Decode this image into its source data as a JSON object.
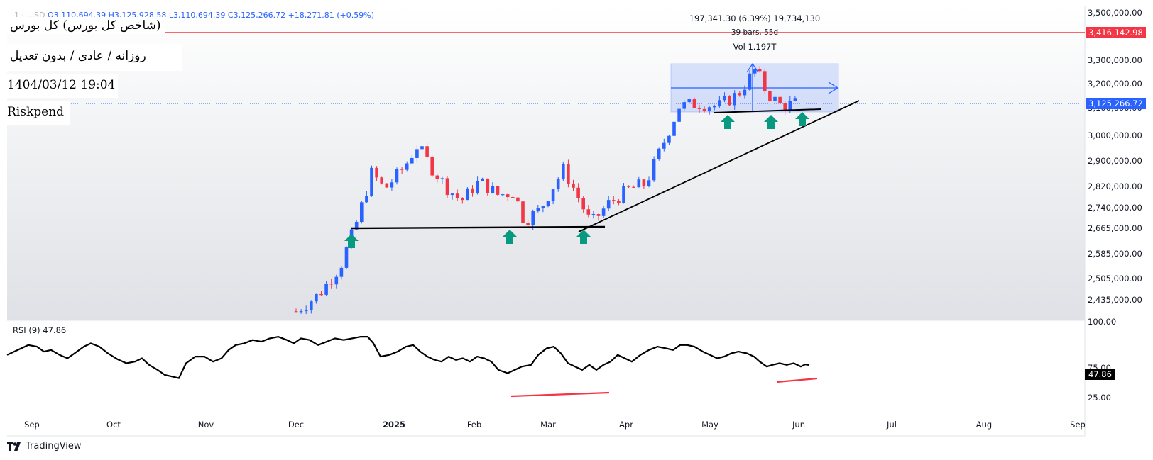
{
  "header": {
    "symbol_badge": "1 · ...SD",
    "ohlc_text": "O3,110,694.39  H3,125,928.58  L3,110,694.39  C3,125,266.72  +18,271.81 (+0.59%)"
  },
  "labels": {
    "title": "(شاخص کل بورس) کل بورس",
    "subtitle": "روزانه / عادی / بدون تعدیل",
    "datetime": "1404/03/12 19:04",
    "author": "Riskpend"
  },
  "measure": {
    "line1": "197,341.30 (6.39%) 19,734,130",
    "line2": "39 bars, 55d",
    "line3": "Vol 1.197T"
  },
  "price_tags": {
    "resistance": "3,416,142.98",
    "current": "3,125,266.72"
  },
  "rsi": {
    "title": "RSI (9)  47.86",
    "value": "47.86"
  },
  "branding": {
    "logo_text": "TradingView"
  },
  "colors": {
    "up": "#2962ff",
    "down": "#f23645",
    "resistance": "#f23645",
    "arrow": "#089981",
    "measure_box": "#2962ff"
  },
  "chart_data": [
    {
      "type": "line",
      "title": "",
      "x_labels": [
        "Sep",
        "Oct",
        "Nov",
        "Dec",
        "2025",
        "Feb",
        "Mar",
        "Apr",
        "May",
        "Jun",
        "Jul",
        "Aug",
        "Sep"
      ],
      "y_ticks": [
        "3,500,000.00",
        "3,300,000.00",
        "3,200,000.00",
        "3,100,000.00",
        "3,000,000.00",
        "2,900,000.00",
        "2,820,000.00",
        "2,740,000.00",
        "2,665,000.00",
        "2,585,000.00",
        "2,505,000.00",
        "2,435,000.00"
      ],
      "y_log_scale": true,
      "resistance_level": 3416142.98,
      "support_level": 2680000,
      "approx_closes": [
        [
          "2024-12-01",
          2400000
        ],
        [
          "2024-12-08",
          2450000
        ],
        [
          "2024-12-15",
          2540000
        ],
        [
          "2024-12-20",
          2680000
        ],
        [
          "2024-12-25",
          2860000
        ],
        [
          "2024-12-29",
          2800000
        ],
        [
          "2025-01-05",
          2880000
        ],
        [
          "2025-01-10",
          2960000
        ],
        [
          "2025-01-16",
          2870000
        ],
        [
          "2025-01-22",
          2800000
        ],
        [
          "2025-01-27",
          2760000
        ],
        [
          "2025-02-03",
          2830000
        ],
        [
          "2025-02-10",
          2780000
        ],
        [
          "2025-02-16",
          2790000
        ],
        [
          "2025-02-20",
          2690000
        ],
        [
          "2025-02-26",
          2730000
        ],
        [
          "2025-03-03",
          2810000
        ],
        [
          "2025-03-07",
          2870000
        ],
        [
          "2025-03-12",
          2790000
        ],
        [
          "2025-03-18",
          2680000
        ],
        [
          "2025-03-25",
          2750000
        ],
        [
          "2025-04-02",
          2800000
        ],
        [
          "2025-04-08",
          2820000
        ],
        [
          "2025-04-14",
          2960000
        ],
        [
          "2025-04-20",
          3110000
        ],
        [
          "2025-04-27",
          3120000
        ],
        [
          "2025-05-04",
          3110000
        ],
        [
          "2025-05-11",
          3160000
        ],
        [
          "2025-05-17",
          3260000
        ],
        [
          "2025-05-21",
          3160000
        ],
        [
          "2025-05-26",
          3110000
        ],
        [
          "2025-06-01",
          3125266.72
        ]
      ]
    },
    {
      "type": "line",
      "title": "",
      "series_name": "RSI (9)",
      "y_ticks": [
        "100.00",
        "75.00",
        "47.86",
        "25.00"
      ],
      "ylim": [
        0,
        100
      ],
      "current_value": 47.86
    }
  ]
}
